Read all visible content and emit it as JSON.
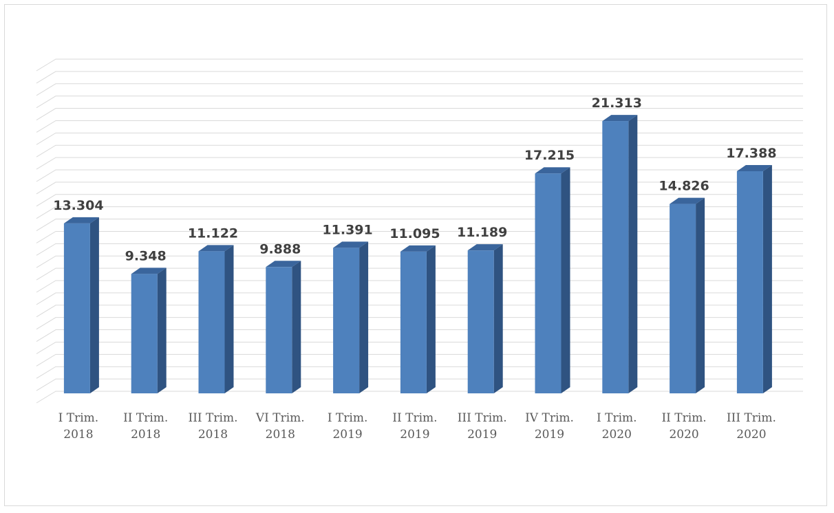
{
  "chart_data": {
    "type": "bar",
    "title": "",
    "xlabel": "",
    "ylabel": "",
    "categories": [
      [
        "I Trim.",
        "2018"
      ],
      [
        "II Trim.",
        "2018"
      ],
      [
        "III Trim.",
        "2018"
      ],
      [
        "VI Trim.",
        "2018"
      ],
      [
        "I Trim.",
        "2019"
      ],
      [
        "II Trim.",
        "2019"
      ],
      [
        "III Trim.",
        "2019"
      ],
      [
        "IV Trim.",
        "2019"
      ],
      [
        "I Trim.",
        "2020"
      ],
      [
        "II Trim.",
        "2020"
      ],
      [
        "III Trim.",
        "2020"
      ]
    ],
    "values": [
      13304,
      9348,
      11122,
      9888,
      11391,
      11095,
      11189,
      17215,
      21313,
      14826,
      17388
    ],
    "value_labels": [
      "13.304",
      "9.348",
      "11.122",
      "9.888",
      "11.391",
      "11.095",
      "11.189",
      "17.215",
      "21.313",
      "14.826",
      "17.388"
    ],
    "ylim": [
      0,
      26000
    ],
    "grid": true,
    "legend": "none",
    "bar_style": "3d",
    "colors": {
      "bar_front": "#4e81bd",
      "bar_side": "#2f5381",
      "bar_top": "#3a659c",
      "gridline": "#d9d9d9",
      "label": "#404040",
      "tick": "#595959"
    }
  }
}
